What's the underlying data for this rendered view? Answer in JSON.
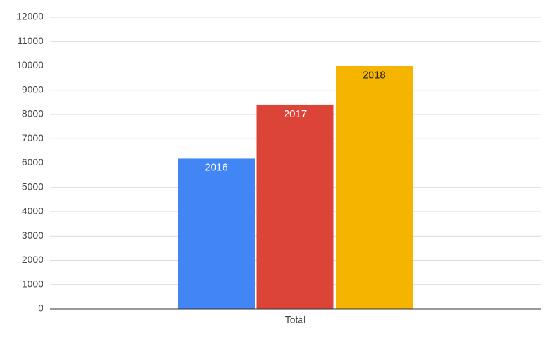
{
  "chart_data": {
    "type": "bar",
    "categories": [
      "Total"
    ],
    "series": [
      {
        "name": "2016",
        "color": "#4285f4",
        "values": [
          6200
        ]
      },
      {
        "name": "2017",
        "color": "#db4437",
        "values": [
          8400
        ]
      },
      {
        "name": "2018",
        "color": "#f4b400",
        "values": [
          10000
        ]
      }
    ],
    "ylim": [
      0,
      12000
    ],
    "yticks": [
      0,
      1000,
      2000,
      3000,
      4000,
      5000,
      6000,
      7000,
      8000,
      9000,
      10000,
      11000,
      12000
    ],
    "grid": true
  }
}
